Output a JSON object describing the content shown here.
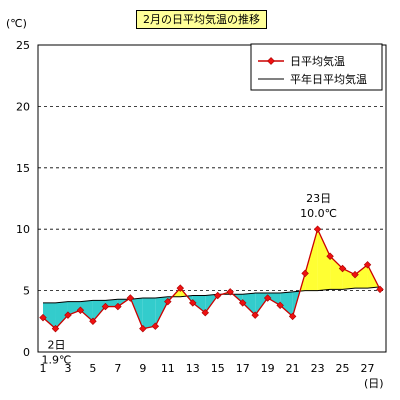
{
  "chart_data": {
    "type": "line",
    "title": "2月の日平均気温の推移",
    "ylabel": "(℃)",
    "xlabel": "(日)",
    "ylim": [
      0,
      25
    ],
    "yticks": [
      0,
      5,
      10,
      15,
      20,
      25
    ],
    "xlim": [
      1,
      28
    ],
    "xticks": [
      1,
      3,
      5,
      7,
      9,
      11,
      13,
      15,
      17,
      19,
      21,
      23,
      25,
      27
    ],
    "grid": "horizontal dashed",
    "legend_position": "top-right",
    "series": [
      {
        "name": "日平均気温",
        "color": "#cc0000",
        "marker": "diamond",
        "x": [
          1,
          2,
          3,
          4,
          5,
          6,
          7,
          8,
          9,
          10,
          11,
          12,
          13,
          14,
          15,
          16,
          17,
          18,
          19,
          20,
          21,
          22,
          23,
          24,
          25,
          26,
          27,
          28
        ],
        "values": [
          2.8,
          1.9,
          3.0,
          3.4,
          2.5,
          3.7,
          3.7,
          4.4,
          1.9,
          2.1,
          4.1,
          5.2,
          4.0,
          3.2,
          4.6,
          4.9,
          4.0,
          3.0,
          4.4,
          3.8,
          2.9,
          6.4,
          10.0,
          7.8,
          6.8,
          6.3,
          7.1,
          5.1
        ]
      },
      {
        "name": "平年日平均気温",
        "color": "#000000",
        "x": [
          1,
          2,
          3,
          4,
          5,
          6,
          7,
          8,
          9,
          10,
          11,
          12,
          13,
          14,
          15,
          16,
          17,
          18,
          19,
          20,
          21,
          22,
          23,
          24,
          25,
          26,
          27,
          28
        ],
        "values": [
          4.0,
          4.0,
          4.1,
          4.1,
          4.2,
          4.2,
          4.3,
          4.3,
          4.4,
          4.4,
          4.5,
          4.5,
          4.6,
          4.6,
          4.7,
          4.7,
          4.7,
          4.8,
          4.8,
          4.8,
          4.9,
          5.0,
          5.0,
          5.1,
          5.1,
          5.2,
          5.2,
          5.3
        ]
      }
    ],
    "fill_below_color": "#33cccc",
    "fill_above_color": "#ffff33",
    "annotations": [
      {
        "x": 2,
        "line1": "2日",
        "line2": "1.9℃"
      },
      {
        "x": 23,
        "line1": "23日",
        "line2": "10.0℃"
      }
    ]
  }
}
